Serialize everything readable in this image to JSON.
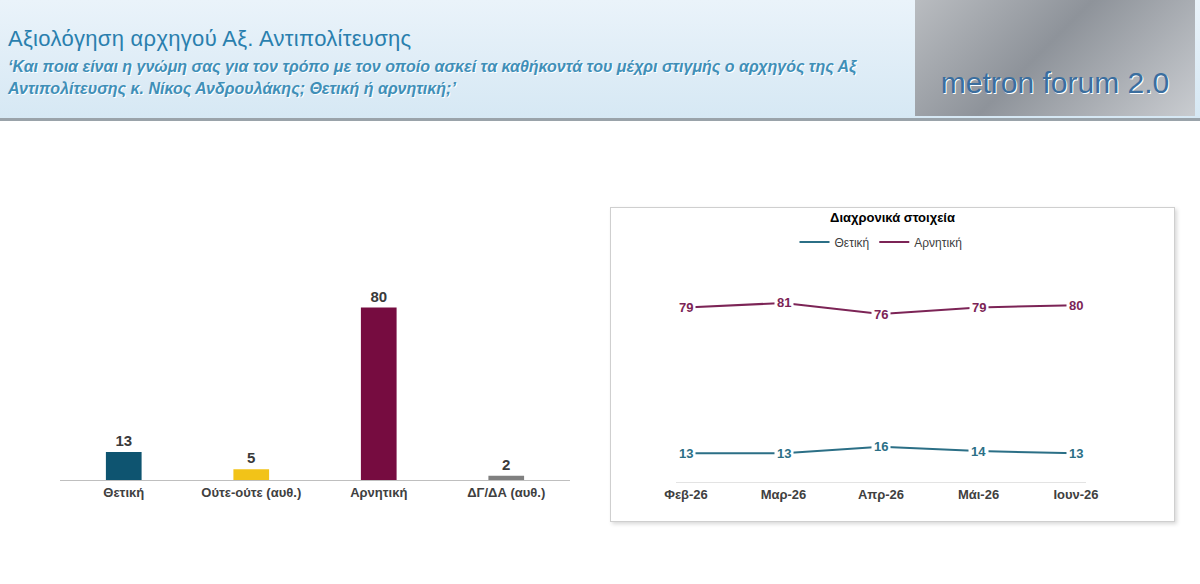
{
  "header": {
    "title": "Αξιολόγηση αρχηγού Αξ. Αντιπολίτευσης",
    "subtitle": "‘Και ποια είναι η γνώμη σας για τον τρόπο με τον οποίο ασκεί τα καθήκοντά του μέχρι στιγμής ο αρχηγός της Αξ Αντιπολίτευσης κ. Νίκος Ανδρουλάκης; Θετική ή αρνητική;’",
    "logo": "metron forum 2.0"
  },
  "chart_data": [
    {
      "type": "bar",
      "categories": [
        "Θετική",
        "Ούτε-ούτε (αυθ.)",
        "Αρνητική",
        "ΔΓ/ΔΑ (αυθ.)"
      ],
      "values": [
        13,
        5,
        80,
        2
      ],
      "colors": [
        "#0e5470",
        "#f2c318",
        "#760c40",
        "#808080"
      ],
      "ylim": [
        0,
        90
      ],
      "data_labels": true,
      "tick_labels": "x",
      "grid": false
    },
    {
      "type": "line",
      "title": "Διαχρονικά στοιχεία",
      "categories": [
        "Φεβ-26",
        "Μαρ-26",
        "Απρ-26",
        "Μάι-26",
        "Ιουν-26"
      ],
      "series": [
        {
          "name": "Θετική",
          "color": "#2b6f86",
          "values": [
            13,
            13,
            16,
            14,
            13
          ]
        },
        {
          "name": "Αρνητική",
          "color": "#7c2456",
          "values": [
            79,
            81,
            76,
            79,
            80
          ]
        }
      ],
      "ylim": [
        0,
        100
      ],
      "data_labels": true,
      "tick_labels": "x",
      "legend": "top",
      "grid": false
    }
  ]
}
